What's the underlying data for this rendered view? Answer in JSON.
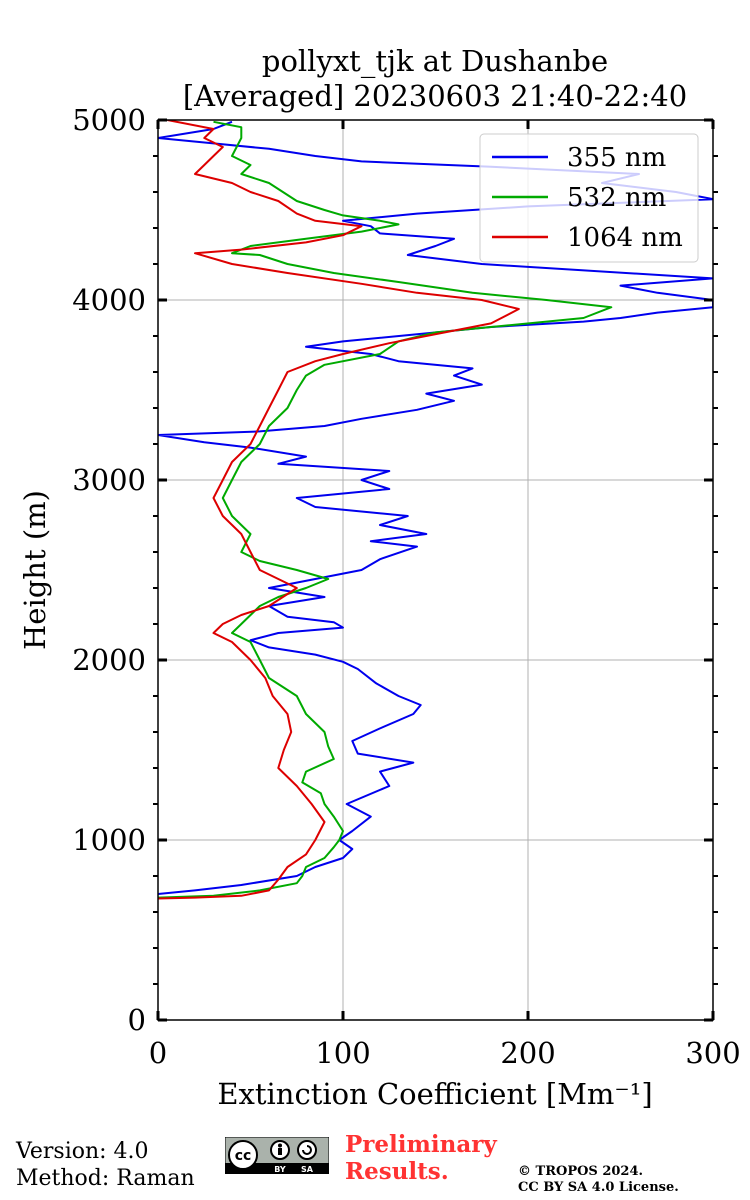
{
  "chart_data": {
    "type": "line",
    "title": "pollyxt_tjk at Dushanbe",
    "subtitle": "[Averaged] 20230603 21:40-22:40",
    "xlabel": "Extinction Coefficient [Mm⁻¹]",
    "ylabel": "Height (m)",
    "xlim": [
      0,
      300
    ],
    "ylim": [
      0,
      5000
    ],
    "xticks": [
      0,
      100,
      200,
      300
    ],
    "yticks": [
      0,
      1000,
      2000,
      3000,
      4000,
      5000
    ],
    "xtick_labels": [
      "0",
      "100",
      "200",
      "300"
    ],
    "ytick_labels": [
      "0",
      "1000",
      "2000",
      "3000",
      "4000",
      "5000"
    ],
    "grid": true,
    "legend_position": "top-right",
    "series": [
      {
        "name": "355 nm",
        "color": "#0000ee",
        "points": [
          [
            0,
            700
          ],
          [
            20,
            720
          ],
          [
            45,
            750
          ],
          [
            75,
            800
          ],
          [
            85,
            850
          ],
          [
            100,
            900
          ],
          [
            105,
            950
          ],
          [
            98,
            1000
          ],
          [
            105,
            1050
          ],
          [
            115,
            1130
          ],
          [
            102,
            1200
          ],
          [
            125,
            1300
          ],
          [
            120,
            1380
          ],
          [
            138,
            1430
          ],
          [
            108,
            1480
          ],
          [
            105,
            1550
          ],
          [
            120,
            1620
          ],
          [
            138,
            1700
          ],
          [
            142,
            1750
          ],
          [
            130,
            1800
          ],
          [
            118,
            1870
          ],
          [
            108,
            1950
          ],
          [
            100,
            1990
          ],
          [
            85,
            2030
          ],
          [
            60,
            2070
          ],
          [
            50,
            2110
          ],
          [
            65,
            2150
          ],
          [
            100,
            2180
          ],
          [
            95,
            2210
          ],
          [
            70,
            2240
          ],
          [
            60,
            2300
          ],
          [
            90,
            2350
          ],
          [
            60,
            2400
          ],
          [
            85,
            2450
          ],
          [
            110,
            2500
          ],
          [
            120,
            2560
          ],
          [
            140,
            2630
          ],
          [
            115,
            2660
          ],
          [
            145,
            2700
          ],
          [
            120,
            2750
          ],
          [
            135,
            2800
          ],
          [
            85,
            2850
          ],
          [
            75,
            2900
          ],
          [
            125,
            2950
          ],
          [
            110,
            3000
          ],
          [
            125,
            3050
          ],
          [
            65,
            3090
          ],
          [
            80,
            3130
          ],
          [
            50,
            3180
          ],
          [
            25,
            3210
          ],
          [
            0,
            3250
          ],
          [
            55,
            3270
          ],
          [
            90,
            3300
          ],
          [
            110,
            3340
          ],
          [
            140,
            3390
          ],
          [
            160,
            3440
          ],
          [
            145,
            3480
          ],
          [
            175,
            3530
          ],
          [
            160,
            3580
          ],
          [
            170,
            3620
          ],
          [
            130,
            3660
          ],
          [
            115,
            3700
          ],
          [
            80,
            3740
          ],
          [
            100,
            3770
          ],
          [
            140,
            3810
          ],
          [
            180,
            3850
          ],
          [
            230,
            3880
          ],
          [
            250,
            3900
          ],
          [
            270,
            3930
          ],
          [
            300,
            3960
          ],
          [
            300,
            4000
          ],
          [
            270,
            4040
          ],
          [
            250,
            4080
          ],
          [
            300,
            4120
          ],
          [
            175,
            4200
          ],
          [
            135,
            4250
          ],
          [
            150,
            4300
          ],
          [
            160,
            4340
          ],
          [
            120,
            4370
          ],
          [
            115,
            4410
          ],
          [
            100,
            4440
          ],
          [
            140,
            4480
          ],
          [
            200,
            4520
          ],
          [
            300,
            4560
          ],
          [
            280,
            4600
          ],
          [
            240,
            4650
          ],
          [
            260,
            4700
          ],
          [
            180,
            4740
          ],
          [
            110,
            4770
          ],
          [
            85,
            4800
          ],
          [
            60,
            4840
          ],
          [
            30,
            4870
          ],
          [
            0,
            4900
          ],
          [
            30,
            4950
          ],
          [
            40,
            4990
          ]
        ]
      },
      {
        "name": "532 nm",
        "color": "#00aa00",
        "points": [
          [
            0,
            680
          ],
          [
            30,
            690
          ],
          [
            55,
            720
          ],
          [
            75,
            760
          ],
          [
            78,
            800
          ],
          [
            80,
            850
          ],
          [
            90,
            900
          ],
          [
            95,
            960
          ],
          [
            98,
            1000
          ],
          [
            100,
            1050
          ],
          [
            95,
            1130
          ],
          [
            90,
            1200
          ],
          [
            88,
            1260
          ],
          [
            78,
            1320
          ],
          [
            80,
            1380
          ],
          [
            95,
            1450
          ],
          [
            92,
            1520
          ],
          [
            90,
            1600
          ],
          [
            80,
            1700
          ],
          [
            75,
            1800
          ],
          [
            60,
            1900
          ],
          [
            55,
            2000
          ],
          [
            50,
            2100
          ],
          [
            40,
            2150
          ],
          [
            45,
            2200
          ],
          [
            55,
            2300
          ],
          [
            65,
            2350
          ],
          [
            80,
            2400
          ],
          [
            92,
            2450
          ],
          [
            75,
            2500
          ],
          [
            55,
            2550
          ],
          [
            45,
            2600
          ],
          [
            50,
            2700
          ],
          [
            40,
            2800
          ],
          [
            35,
            2900
          ],
          [
            40,
            3000
          ],
          [
            45,
            3100
          ],
          [
            55,
            3200
          ],
          [
            60,
            3300
          ],
          [
            70,
            3400
          ],
          [
            75,
            3500
          ],
          [
            80,
            3580
          ],
          [
            90,
            3640
          ],
          [
            120,
            3700
          ],
          [
            130,
            3770
          ],
          [
            150,
            3820
          ],
          [
            190,
            3860
          ],
          [
            230,
            3900
          ],
          [
            245,
            3960
          ],
          [
            210,
            4000
          ],
          [
            170,
            4040
          ],
          [
            130,
            4100
          ],
          [
            95,
            4150
          ],
          [
            70,
            4200
          ],
          [
            55,
            4250
          ],
          [
            40,
            4260
          ],
          [
            50,
            4300
          ],
          [
            80,
            4340
          ],
          [
            110,
            4380
          ],
          [
            130,
            4420
          ],
          [
            120,
            4440
          ],
          [
            100,
            4470
          ],
          [
            90,
            4500
          ],
          [
            75,
            4550
          ],
          [
            60,
            4650
          ],
          [
            45,
            4700
          ],
          [
            50,
            4750
          ],
          [
            40,
            4800
          ],
          [
            45,
            4900
          ],
          [
            45,
            4960
          ],
          [
            30,
            4990
          ]
        ]
      },
      {
        "name": "1064 nm",
        "color": "#dd0000",
        "points": [
          [
            0,
            675
          ],
          [
            20,
            680
          ],
          [
            45,
            690
          ],
          [
            60,
            720
          ],
          [
            65,
            780
          ],
          [
            70,
            850
          ],
          [
            80,
            920
          ],
          [
            85,
            1000
          ],
          [
            90,
            1100
          ],
          [
            83,
            1200
          ],
          [
            75,
            1300
          ],
          [
            65,
            1400
          ],
          [
            68,
            1500
          ],
          [
            72,
            1600
          ],
          [
            70,
            1700
          ],
          [
            62,
            1800
          ],
          [
            58,
            1900
          ],
          [
            50,
            2000
          ],
          [
            40,
            2100
          ],
          [
            30,
            2150
          ],
          [
            35,
            2200
          ],
          [
            45,
            2250
          ],
          [
            60,
            2300
          ],
          [
            75,
            2400
          ],
          [
            65,
            2450
          ],
          [
            55,
            2500
          ],
          [
            50,
            2600
          ],
          [
            45,
            2700
          ],
          [
            35,
            2800
          ],
          [
            30,
            2900
          ],
          [
            35,
            3000
          ],
          [
            40,
            3100
          ],
          [
            50,
            3200
          ],
          [
            55,
            3300
          ],
          [
            60,
            3400
          ],
          [
            65,
            3500
          ],
          [
            70,
            3600
          ],
          [
            85,
            3660
          ],
          [
            100,
            3700
          ],
          [
            125,
            3760
          ],
          [
            155,
            3820
          ],
          [
            180,
            3870
          ],
          [
            195,
            3950
          ],
          [
            175,
            4000
          ],
          [
            140,
            4040
          ],
          [
            110,
            4090
          ],
          [
            70,
            4150
          ],
          [
            40,
            4200
          ],
          [
            20,
            4260
          ],
          [
            45,
            4280
          ],
          [
            80,
            4320
          ],
          [
            100,
            4360
          ],
          [
            110,
            4410
          ],
          [
            85,
            4440
          ],
          [
            75,
            4480
          ],
          [
            65,
            4550
          ],
          [
            50,
            4600
          ],
          [
            40,
            4650
          ],
          [
            20,
            4700
          ],
          [
            25,
            4750
          ],
          [
            30,
            4800
          ],
          [
            35,
            4850
          ],
          [
            25,
            4900
          ],
          [
            30,
            4950
          ],
          [
            5,
            5000
          ]
        ]
      }
    ]
  },
  "footer": {
    "version": "Version: 4.0",
    "method": "Method: Raman",
    "preliminary_line1": "Preliminary",
    "preliminary_line2": "Results.",
    "copyright_line1": "© TROPOS 2024.",
    "copyright_line2": "CC BY SA 4.0 License.",
    "license_badge": {
      "cc": "cc",
      "by": "BY",
      "sa": "SA"
    }
  }
}
